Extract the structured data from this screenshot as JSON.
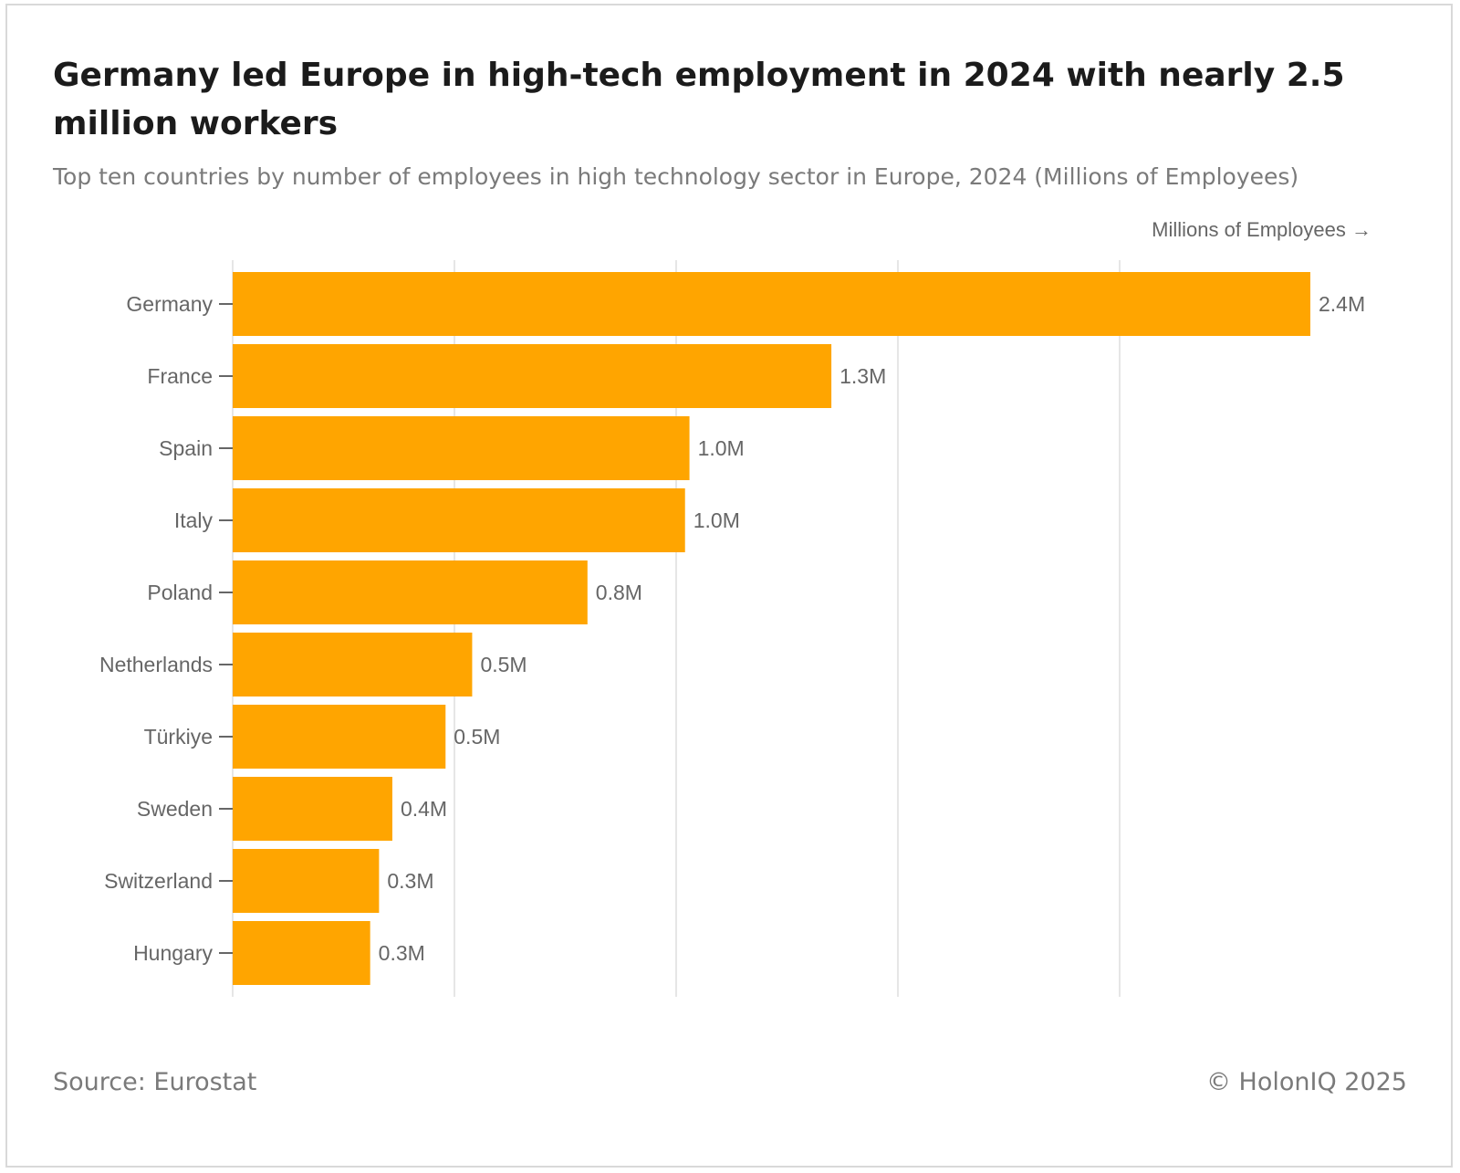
{
  "header": {
    "title": "Germany led Europe in high-tech employment in 2024 with nearly 2.5 million workers",
    "subtitle": "Top ten countries by number of employees in high technology sector in Europe, 2024 (Millions of Employees)"
  },
  "footer": {
    "source": "Source: Eurostat",
    "copyright": "© HolonIQ 2025"
  },
  "chart_data": {
    "type": "bar",
    "orientation": "horizontal",
    "categories": [
      "Germany",
      "France",
      "Spain",
      "Italy",
      "Poland",
      "Netherlands",
      "Türkiye",
      "Sweden",
      "Switzerland",
      "Hungary"
    ],
    "values": [
      2.43,
      1.35,
      1.03,
      1.02,
      0.8,
      0.54,
      0.48,
      0.36,
      0.33,
      0.31
    ],
    "data_labels": [
      "2.4M",
      "1.3M",
      "1.0M",
      "1.0M",
      "0.8M",
      "0.5M",
      "0.5M",
      "0.4M",
      "0.3M",
      "0.3M"
    ],
    "xlabel": "Millions of Employees →",
    "xlim": [
      0,
      2.5
    ],
    "gridlines": [
      0,
      0.5,
      1.0,
      1.5,
      2.0
    ],
    "grid": true,
    "legend": false,
    "bar_color": "#FFA500",
    "gridline_color": "#e6e6e6",
    "label_color": "#666666"
  }
}
